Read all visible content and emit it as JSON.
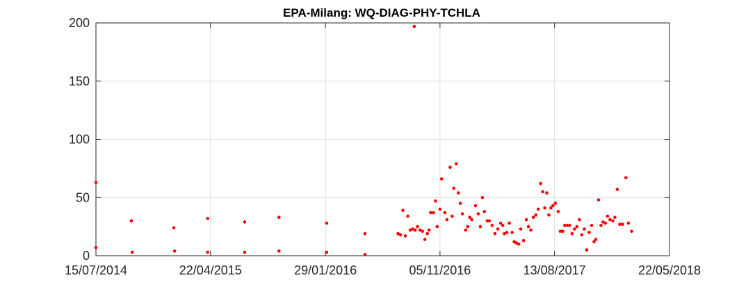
{
  "chart_data": {
    "type": "scatter",
    "title": "EPA-Milang: WQ-DIAG-PHY-TCHLA",
    "xlabel": "",
    "ylabel": "",
    "x_start": "2014-07-15",
    "x_end": "2018-05-22",
    "ylim": [
      0,
      200
    ],
    "yticks": [
      0,
      50,
      100,
      150,
      200
    ],
    "xticks": [
      "15/07/2014",
      "22/04/2015",
      "29/01/2016",
      "05/11/2016",
      "13/08/2017",
      "22/05/2018"
    ],
    "grid": true,
    "marker_color": "#ff0000",
    "points": [
      [
        "2014-07-15",
        63
      ],
      [
        "2014-07-15",
        7
      ],
      [
        "2014-10-10",
        30
      ],
      [
        "2014-10-12",
        3
      ],
      [
        "2015-01-22",
        24
      ],
      [
        "2015-01-24",
        4
      ],
      [
        "2015-04-15",
        32
      ],
      [
        "2015-04-15",
        3
      ],
      [
        "2015-07-15",
        29
      ],
      [
        "2015-07-15",
        3
      ],
      [
        "2015-10-07",
        33
      ],
      [
        "2015-10-07",
        4
      ],
      [
        "2016-02-01",
        28
      ],
      [
        "2016-02-01",
        3
      ],
      [
        "2016-05-05",
        19
      ],
      [
        "2016-05-05",
        1
      ],
      [
        "2016-07-25",
        19
      ],
      [
        "2016-07-31",
        18
      ],
      [
        "2016-08-06",
        39
      ],
      [
        "2016-08-12",
        17
      ],
      [
        "2016-08-18",
        34
      ],
      [
        "2016-08-24",
        22
      ],
      [
        "2016-08-30",
        23
      ],
      [
        "2016-09-03",
        197
      ],
      [
        "2016-09-05",
        22
      ],
      [
        "2016-09-11",
        25
      ],
      [
        "2016-09-17",
        22
      ],
      [
        "2016-09-23",
        21
      ],
      [
        "2016-09-29",
        14
      ],
      [
        "2016-10-05",
        19
      ],
      [
        "2016-10-09",
        22
      ],
      [
        "2016-10-13",
        37
      ],
      [
        "2016-10-20",
        37
      ],
      [
        "2016-10-25",
        47
      ],
      [
        "2016-10-29",
        25
      ],
      [
        "2016-11-05",
        40
      ],
      [
        "2016-11-09",
        66
      ],
      [
        "2016-11-17",
        37
      ],
      [
        "2016-11-22",
        31
      ],
      [
        "2016-11-30",
        76
      ],
      [
        "2016-12-05",
        34
      ],
      [
        "2016-12-09",
        58
      ],
      [
        "2016-12-15",
        79
      ],
      [
        "2016-12-20",
        54
      ],
      [
        "2016-12-25",
        45
      ],
      [
        "2016-12-30",
        36
      ],
      [
        "2017-01-07",
        22
      ],
      [
        "2017-01-12",
        25
      ],
      [
        "2017-01-17",
        33
      ],
      [
        "2017-01-22",
        31
      ],
      [
        "2017-01-31",
        43
      ],
      [
        "2017-02-07",
        36
      ],
      [
        "2017-02-12",
        25
      ],
      [
        "2017-02-17",
        50
      ],
      [
        "2017-02-22",
        38
      ],
      [
        "2017-03-01",
        30
      ],
      [
        "2017-03-06",
        30
      ],
      [
        "2017-03-13",
        26
      ],
      [
        "2017-03-20",
        19
      ],
      [
        "2017-03-27",
        23
      ],
      [
        "2017-04-03",
        28
      ],
      [
        "2017-04-08",
        26
      ],
      [
        "2017-04-12",
        19
      ],
      [
        "2017-04-18",
        20
      ],
      [
        "2017-04-24",
        28
      ],
      [
        "2017-05-01",
        20
      ],
      [
        "2017-05-06",
        12
      ],
      [
        "2017-05-11",
        11
      ],
      [
        "2017-05-17",
        10
      ],
      [
        "2017-05-22",
        23
      ],
      [
        "2017-05-29",
        13
      ],
      [
        "2017-06-05",
        31
      ],
      [
        "2017-06-10",
        25
      ],
      [
        "2017-06-16",
        22
      ],
      [
        "2017-06-22",
        33
      ],
      [
        "2017-06-28",
        35
      ],
      [
        "2017-07-04",
        40
      ],
      [
        "2017-07-10",
        62
      ],
      [
        "2017-07-15",
        55
      ],
      [
        "2017-07-20",
        41
      ],
      [
        "2017-07-25",
        54
      ],
      [
        "2017-07-30",
        35
      ],
      [
        "2017-08-04",
        41
      ],
      [
        "2017-08-09",
        43
      ],
      [
        "2017-08-15",
        45
      ],
      [
        "2017-08-22",
        38
      ],
      [
        "2017-08-27",
        21
      ],
      [
        "2017-09-02",
        21
      ],
      [
        "2017-09-07",
        26
      ],
      [
        "2017-09-13",
        26
      ],
      [
        "2017-09-19",
        26
      ],
      [
        "2017-09-25",
        19
      ],
      [
        "2017-10-01",
        23
      ],
      [
        "2017-10-07",
        25
      ],
      [
        "2017-10-13",
        31
      ],
      [
        "2017-10-19",
        18
      ],
      [
        "2017-10-25",
        23
      ],
      [
        "2017-10-31",
        5
      ],
      [
        "2017-11-06",
        20
      ],
      [
        "2017-11-12",
        26
      ],
      [
        "2017-11-18",
        12
      ],
      [
        "2017-11-22",
        14
      ],
      [
        "2017-11-29",
        48
      ],
      [
        "2017-12-05",
        26
      ],
      [
        "2017-12-10",
        29
      ],
      [
        "2017-12-16",
        28
      ],
      [
        "2017-12-21",
        34
      ],
      [
        "2017-12-27",
        31
      ],
      [
        "2018-01-03",
        30
      ],
      [
        "2018-01-08",
        33
      ],
      [
        "2018-01-14",
        57
      ],
      [
        "2018-01-20",
        27
      ],
      [
        "2018-01-27",
        27
      ],
      [
        "2018-02-04",
        67
      ],
      [
        "2018-02-10",
        28
      ],
      [
        "2018-02-18",
        21
      ]
    ]
  }
}
